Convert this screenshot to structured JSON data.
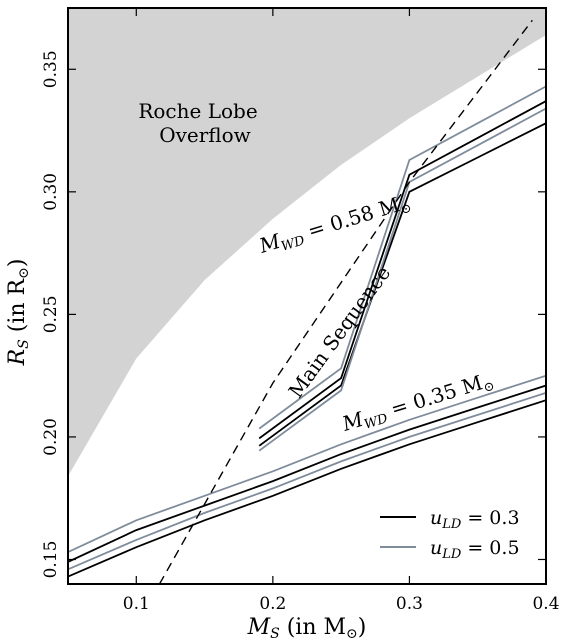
{
  "chart_data": {
    "type": "line",
    "title": "",
    "xlabel_main": "M",
    "xlabel_sub": "S",
    "xlabel_rest": " (in M",
    "xlabel_sun": "⊙",
    "xlabel_close": ")",
    "ylabel_main": "R",
    "ylabel_sub": "S",
    "ylabel_rest": " (in R",
    "ylabel_sun": "⊙",
    "ylabel_close": ")",
    "xlim": [
      0.05,
      0.4
    ],
    "ylim": [
      0.14,
      0.375
    ],
    "xticks": [
      0.1,
      0.2,
      0.3,
      0.4
    ],
    "xtick_labels": [
      "0.1",
      "0.2",
      "0.3",
      "0.4"
    ],
    "yticks": [
      0.15,
      0.2,
      0.25,
      0.3,
      0.35
    ],
    "ytick_labels": [
      "0.15",
      "0.20",
      "0.25",
      "0.30",
      "0.35"
    ],
    "grid": false,
    "roche_region": {
      "label_line1": "Roche Lobe",
      "label_line2": "Overflow",
      "fill": "#d3d3d3",
      "boundary": [
        [
          0.05,
          0.184
        ],
        [
          0.1,
          0.232
        ],
        [
          0.15,
          0.264
        ],
        [
          0.2,
          0.289
        ],
        [
          0.25,
          0.311
        ],
        [
          0.3,
          0.33
        ],
        [
          0.35,
          0.347
        ],
        [
          0.4,
          0.364
        ]
      ]
    },
    "main_sequence": {
      "label": "Main Sequence",
      "style": "dashed",
      "points": [
        [
          0.117,
          0.14
        ],
        [
          0.2,
          0.222
        ],
        [
          0.3,
          0.304
        ],
        [
          0.39,
          0.37
        ]
      ]
    },
    "legend": {
      "position": "bottom-right",
      "entries": [
        {
          "label": "u",
          "sub": "LD",
          "value": " = 0.3",
          "color": "#000000"
        },
        {
          "label": "u",
          "sub": "LD",
          "value": " = 0.5",
          "color": "#7f8c9c"
        }
      ]
    },
    "groups": [
      {
        "label_main": "M",
        "label_sub": "WD",
        "label_value": " = 0.58 M",
        "label_sun": "⊙",
        "series": [
          {
            "color": "#000000",
            "points": [
              [
                0.05,
                0.149
              ],
              [
                0.15,
                0.183
              ],
              [
                0.25,
                0.224
              ],
              [
                0.3,
                0.307
              ],
              [
                0.35,
                0.322
              ],
              [
                0.4,
                0.337
              ]
            ]
          },
          {
            "color": "#000000",
            "points": [
              [
                0.05,
                0.147
              ],
              [
                0.15,
                0.18
              ],
              [
                0.25,
                0.221
              ],
              [
                0.3,
                0.3
              ],
              [
                0.35,
                0.314
              ],
              [
                0.4,
                0.328
              ]
            ]
          },
          {
            "color": "#7f8c9c",
            "points": [
              [
                0.05,
                0.152
              ],
              [
                0.15,
                0.187
              ],
              [
                0.25,
                0.228
              ],
              [
                0.3,
                0.313
              ],
              [
                0.35,
                0.328
              ],
              [
                0.4,
                0.343
              ]
            ]
          },
          {
            "color": "#7f8c9c",
            "points": [
              [
                0.05,
                0.146
              ],
              [
                0.15,
                0.178
              ],
              [
                0.25,
                0.219
              ],
              [
                0.3,
                0.304
              ],
              [
                0.35,
                0.319
              ],
              [
                0.4,
                0.334
              ]
            ]
          }
        ],
        "main_segment_x": [
          0.19,
          0.4
        ]
      },
      {
        "label_main": "M",
        "label_sub": "WD",
        "label_value": " = 0.35 M",
        "label_sun": "⊙",
        "series": [
          {
            "color": "#000000",
            "points": [
              [
                0.05,
                0.149
              ],
              [
                0.1,
                0.162
              ],
              [
                0.15,
                0.172
              ],
              [
                0.2,
                0.182
              ],
              [
                0.25,
                0.193
              ],
              [
                0.3,
                0.203
              ],
              [
                0.35,
                0.212
              ],
              [
                0.4,
                0.221
              ]
            ]
          },
          {
            "color": "#000000",
            "points": [
              [
                0.05,
                0.143
              ],
              [
                0.1,
                0.155
              ],
              [
                0.15,
                0.166
              ],
              [
                0.2,
                0.176
              ],
              [
                0.25,
                0.187
              ],
              [
                0.3,
                0.197
              ],
              [
                0.35,
                0.206
              ],
              [
                0.4,
                0.215
              ]
            ]
          },
          {
            "color": "#7f8c9c",
            "points": [
              [
                0.05,
                0.153
              ],
              [
                0.1,
                0.166
              ],
              [
                0.15,
                0.176
              ],
              [
                0.2,
                0.186
              ],
              [
                0.25,
                0.197
              ],
              [
                0.3,
                0.207
              ],
              [
                0.35,
                0.216
              ],
              [
                0.4,
                0.225
              ]
            ]
          },
          {
            "color": "#7f8c9c",
            "points": [
              [
                0.05,
                0.146
              ],
              [
                0.1,
                0.158
              ],
              [
                0.15,
                0.169
              ],
              [
                0.2,
                0.179
              ],
              [
                0.25,
                0.19
              ],
              [
                0.3,
                0.2
              ],
              [
                0.35,
                0.209
              ],
              [
                0.4,
                0.218
              ]
            ]
          }
        ]
      }
    ]
  }
}
